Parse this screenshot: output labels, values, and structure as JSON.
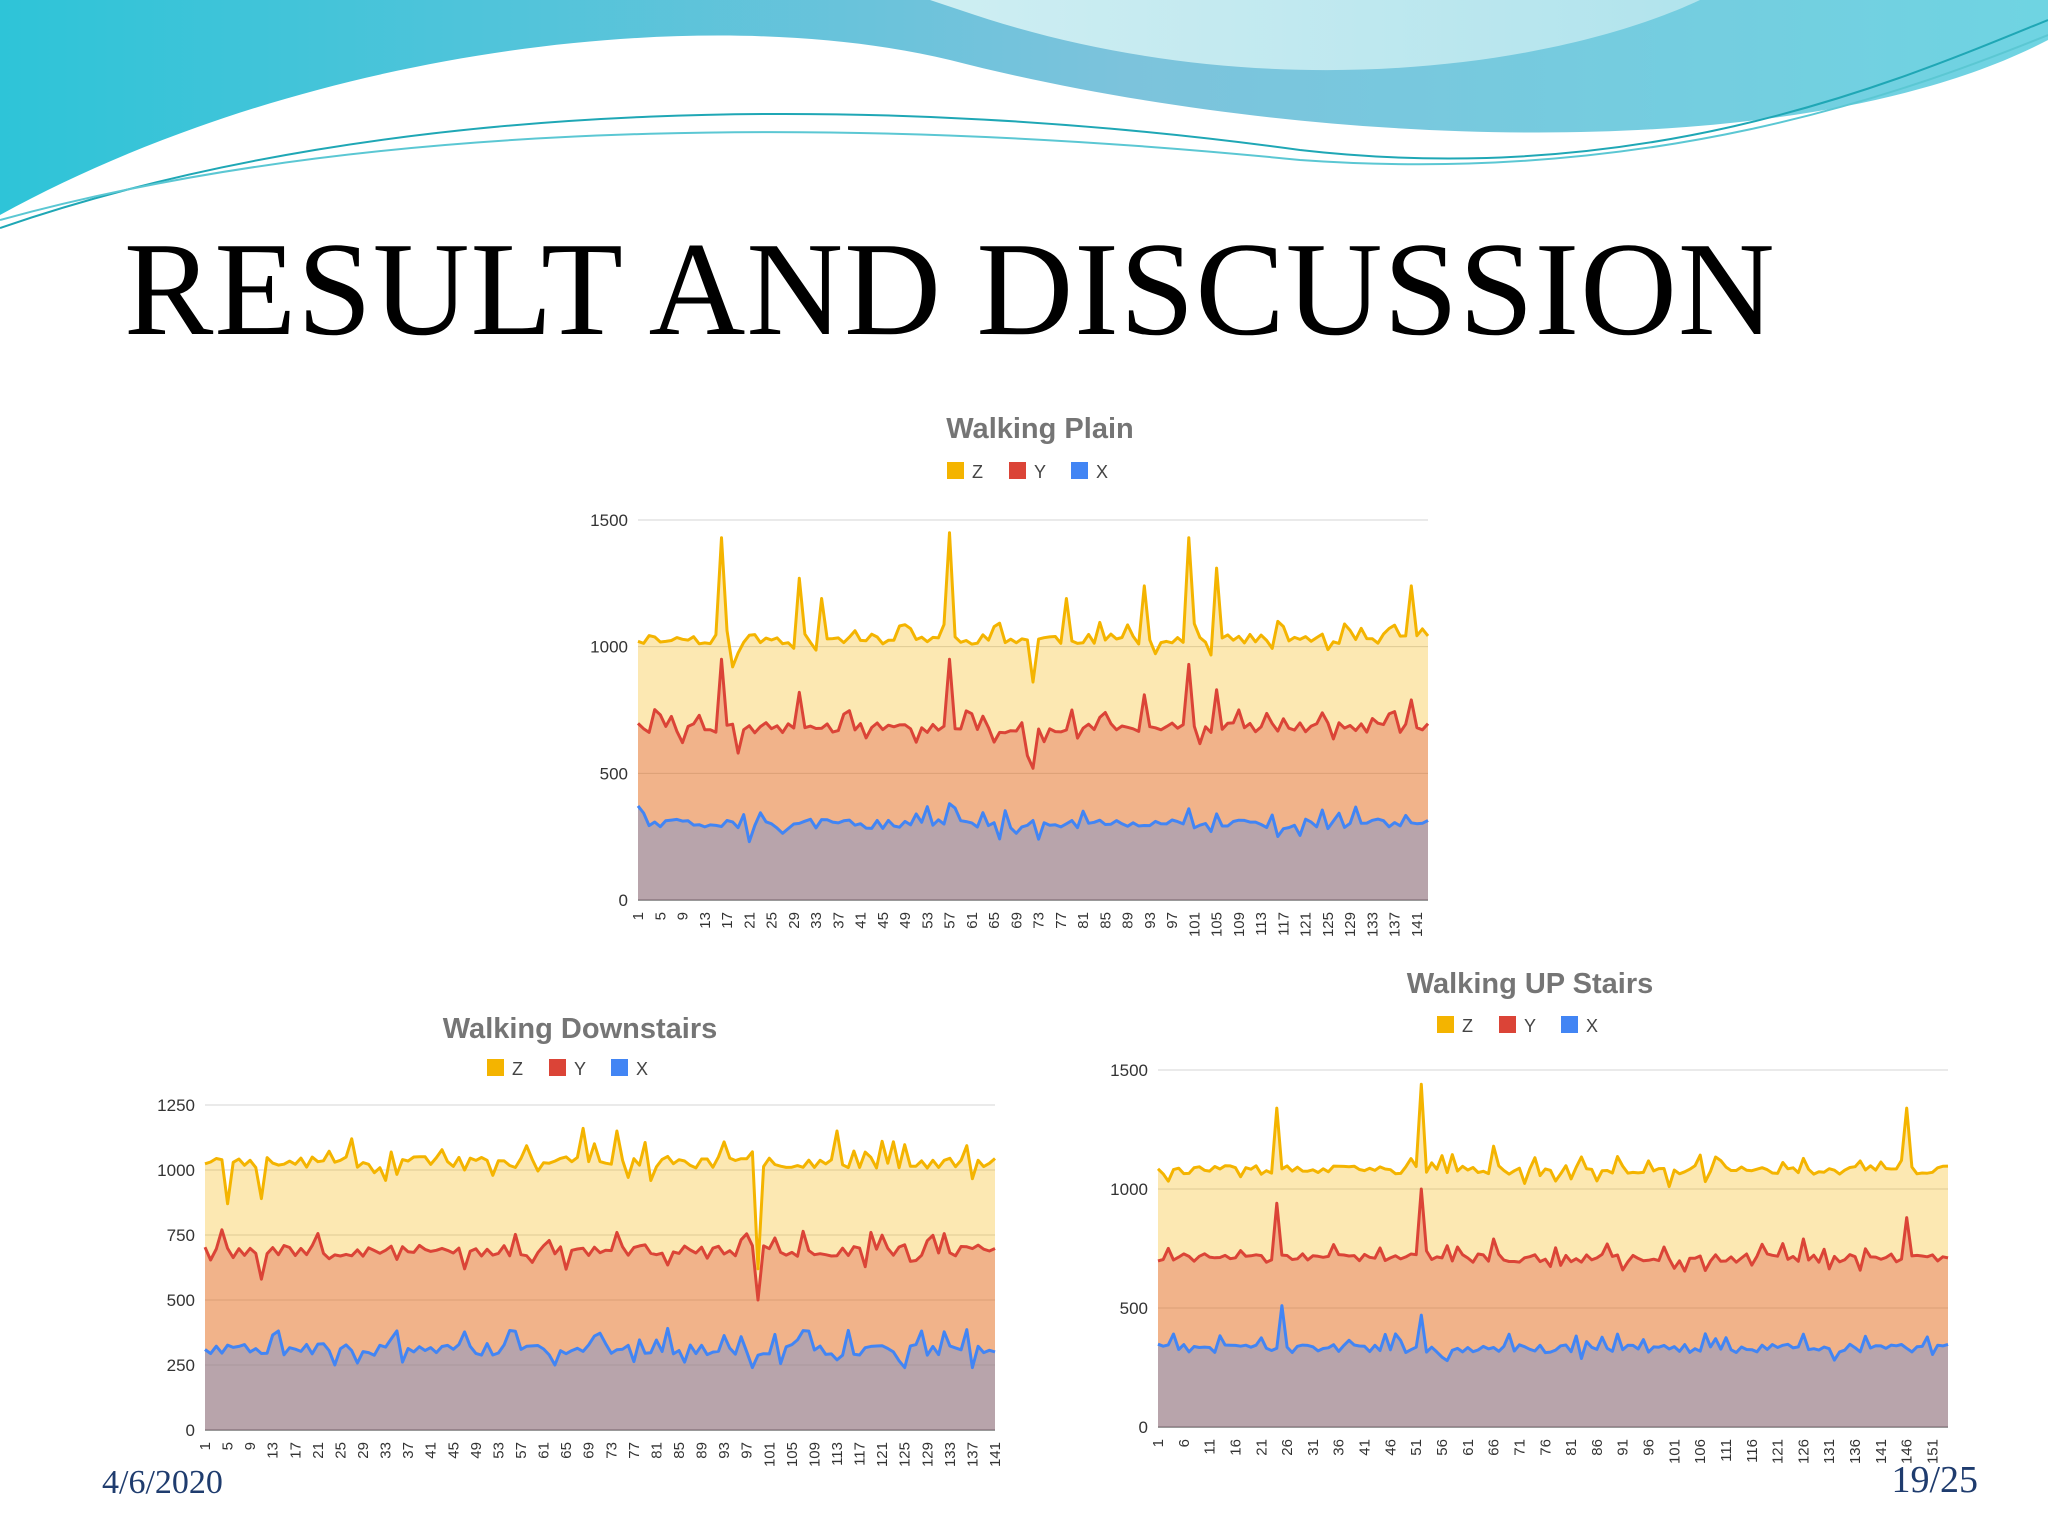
{
  "slide": {
    "title": "RESULT AND DISCUSSION",
    "date": "4/6/2020",
    "page": "19/25"
  },
  "colors": {
    "Z": "#f4b400",
    "Y": "#db4437",
    "X": "#4285f4"
  },
  "chart_data": [
    {
      "id": "walking-plain",
      "type": "line",
      "title": "Walking Plain",
      "legend": [
        "Z",
        "Y",
        "X"
      ],
      "legend_position": "top-center",
      "ylim": [
        0,
        1500
      ],
      "yticks": [
        0,
        500,
        1000,
        1500
      ],
      "grid": true,
      "x_start": 1,
      "x_count": 143,
      "x_tick_step": 4,
      "series": [
        {
          "name": "Z",
          "baseline": 1030,
          "spikes": [
            [
              16,
              1430
            ],
            [
              18,
              920
            ],
            [
              30,
              1270
            ],
            [
              34,
              1190
            ],
            [
              57,
              1450
            ],
            [
              72,
              860
            ],
            [
              78,
              1190
            ],
            [
              92,
              1240
            ],
            [
              100,
              1430
            ],
            [
              105,
              1310
            ],
            [
              140,
              1240
            ],
            [
              142,
              1070
            ]
          ]
        },
        {
          "name": "Y",
          "baseline": 680,
          "spikes": [
            [
              16,
              950
            ],
            [
              19,
              580
            ],
            [
              30,
              820
            ],
            [
              57,
              950
            ],
            [
              71,
              570
            ],
            [
              72,
              520
            ],
            [
              79,
              750
            ],
            [
              92,
              810
            ],
            [
              100,
              930
            ],
            [
              105,
              830
            ],
            [
              140,
              790
            ]
          ]
        },
        {
          "name": "X",
          "baseline": 300,
          "spikes": [
            [
              21,
              230
            ],
            [
              57,
              380
            ],
            [
              73,
              240
            ],
            [
              100,
              360
            ],
            [
              105,
              340
            ]
          ]
        }
      ]
    },
    {
      "id": "walking-downstairs",
      "type": "line",
      "title": "Walking Downstairs",
      "legend": [
        "Z",
        "Y",
        "X"
      ],
      "legend_position": "top-center",
      "ylim": [
        0,
        1250
      ],
      "yticks": [
        0,
        250,
        500,
        750,
        1000,
        1250
      ],
      "grid": true,
      "x_start": 1,
      "x_count": 141,
      "x_tick_step": 4,
      "series": [
        {
          "name": "Z",
          "baseline": 1030,
          "spikes": [
            [
              5,
              870
            ],
            [
              11,
              890
            ],
            [
              27,
              1120
            ],
            [
              33,
              960
            ],
            [
              68,
              1160
            ],
            [
              74,
              1150
            ],
            [
              98,
              1070
            ],
            [
              99,
              620
            ],
            [
              113,
              1150
            ]
          ]
        },
        {
          "name": "Y",
          "baseline": 690,
          "spikes": [
            [
              4,
              770
            ],
            [
              11,
              580
            ],
            [
              47,
              620
            ],
            [
              74,
              760
            ],
            [
              99,
              500
            ],
            [
              119,
              760
            ]
          ]
        },
        {
          "name": "X",
          "baseline": 310,
          "spikes": [
            [
              24,
              250
            ],
            [
              63,
              250
            ],
            [
              98,
              240
            ],
            [
              125,
              240
            ],
            [
              137,
              240
            ]
          ]
        }
      ]
    },
    {
      "id": "walking-up-stairs",
      "type": "line",
      "title": "Walking UP Stairs",
      "legend": [
        "Z",
        "Y",
        "X"
      ],
      "legend_position": "top-center",
      "ylim": [
        0,
        1500
      ],
      "yticks": [
        0,
        500,
        1000,
        1500
      ],
      "grid": true,
      "x_start": 1,
      "x_count": 154,
      "x_tick_step": 5,
      "series": [
        {
          "name": "Z",
          "baseline": 1080,
          "spikes": [
            [
              24,
              1340
            ],
            [
              52,
              1440
            ],
            [
              66,
              1180
            ],
            [
              100,
              1010
            ],
            [
              146,
              1340
            ]
          ]
        },
        {
          "name": "Y",
          "baseline": 710,
          "spikes": [
            [
              24,
              940
            ],
            [
              52,
              1000
            ],
            [
              66,
              790
            ],
            [
              126,
              790
            ],
            [
              146,
              880
            ]
          ]
        },
        {
          "name": "X",
          "baseline": 330,
          "spikes": [
            [
              25,
              510
            ],
            [
              52,
              470
            ],
            [
              69,
              390
            ],
            [
              126,
              390
            ]
          ]
        }
      ]
    }
  ]
}
